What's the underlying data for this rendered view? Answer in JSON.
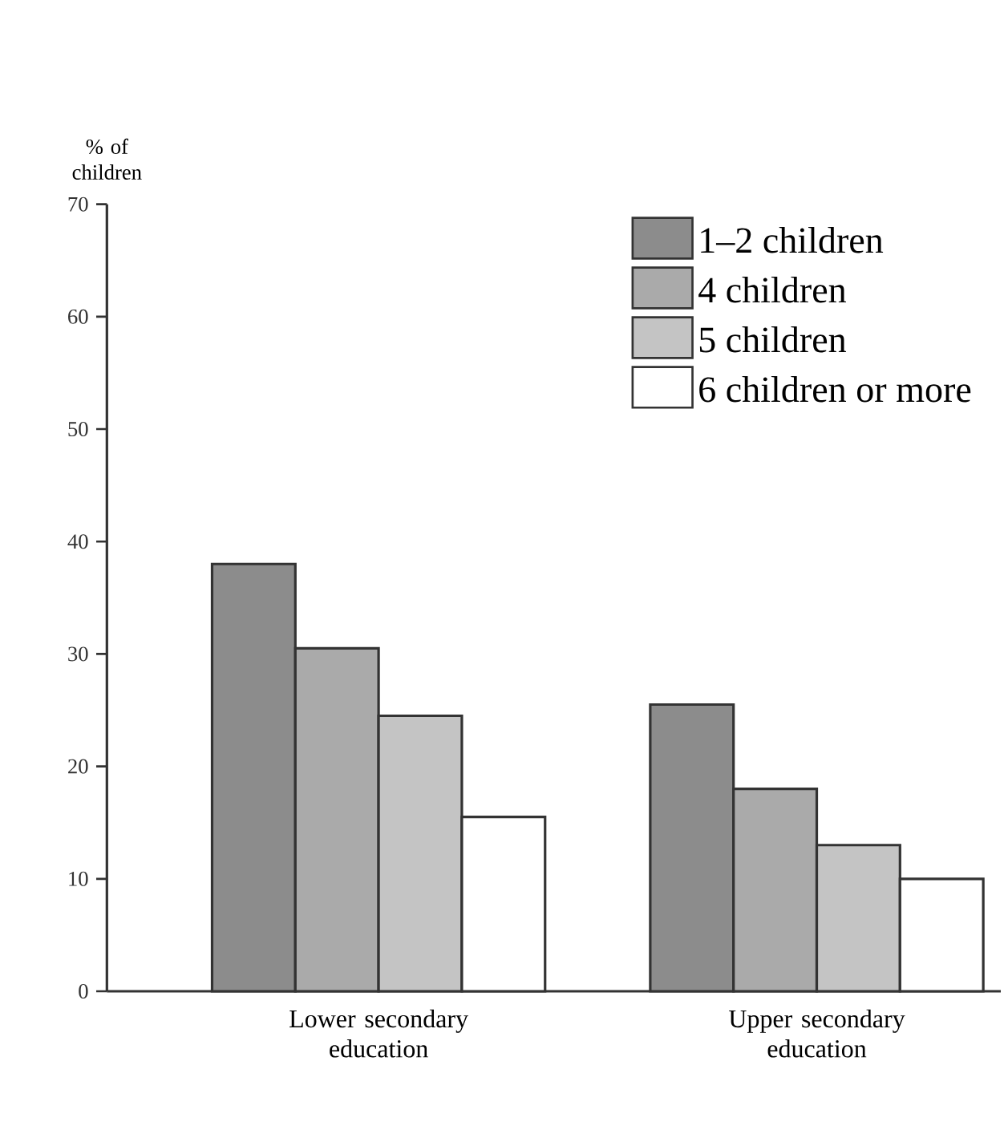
{
  "chart_data": {
    "type": "bar",
    "ylabel": "% of children",
    "categories": [
      "Lower secondary education",
      "Upper secondary education"
    ],
    "series": [
      {
        "name": "1–2 children",
        "color": "#8c8c8c",
        "values": [
          38,
          25.5
        ]
      },
      {
        "name": "4 children",
        "color": "#aaaaaa",
        "values": [
          30.5,
          18
        ]
      },
      {
        "name": "5 children",
        "color": "#c4c4c4",
        "values": [
          24.5,
          13
        ]
      },
      {
        "name": "6 children or more",
        "color": "#ffffff",
        "values": [
          15.5,
          10
        ]
      }
    ],
    "ylim": [
      0,
      70
    ],
    "yticks": [
      0,
      10,
      20,
      30,
      40,
      50,
      60,
      70
    ],
    "legend": "top right",
    "grid": false
  }
}
